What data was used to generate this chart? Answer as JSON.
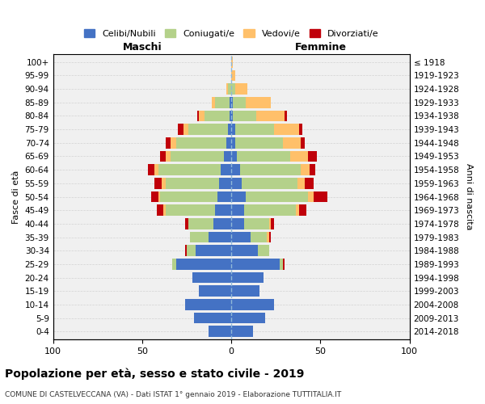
{
  "age_groups": [
    "0-4",
    "5-9",
    "10-14",
    "15-19",
    "20-24",
    "25-29",
    "30-34",
    "35-39",
    "40-44",
    "45-49",
    "50-54",
    "55-59",
    "60-64",
    "65-69",
    "70-74",
    "75-79",
    "80-84",
    "85-89",
    "90-94",
    "95-99",
    "100+"
  ],
  "birth_years": [
    "2014-2018",
    "2009-2013",
    "2004-2008",
    "1999-2003",
    "1994-1998",
    "1989-1993",
    "1984-1988",
    "1979-1983",
    "1974-1978",
    "1969-1973",
    "1964-1968",
    "1959-1963",
    "1954-1958",
    "1949-1953",
    "1944-1948",
    "1939-1943",
    "1934-1938",
    "1929-1933",
    "1924-1928",
    "1919-1923",
    "≤ 1918"
  ],
  "maschi": {
    "celibi": [
      13,
      21,
      26,
      18,
      22,
      31,
      20,
      13,
      10,
      9,
      8,
      7,
      6,
      4,
      3,
      2,
      1,
      1,
      0,
      0,
      0
    ],
    "coniugati": [
      0,
      0,
      0,
      0,
      0,
      2,
      5,
      10,
      14,
      28,
      32,
      30,
      35,
      30,
      28,
      22,
      14,
      8,
      2,
      0,
      0
    ],
    "vedovi": [
      0,
      0,
      0,
      0,
      0,
      0,
      0,
      0,
      0,
      1,
      1,
      2,
      2,
      3,
      3,
      3,
      3,
      2,
      1,
      0,
      0
    ],
    "divorziati": [
      0,
      0,
      0,
      0,
      0,
      0,
      1,
      0,
      2,
      4,
      4,
      4,
      4,
      3,
      3,
      3,
      1,
      0,
      0,
      0,
      0
    ]
  },
  "femmine": {
    "nubili": [
      12,
      19,
      24,
      16,
      18,
      27,
      15,
      11,
      7,
      7,
      8,
      6,
      5,
      3,
      2,
      2,
      1,
      1,
      0,
      0,
      0
    ],
    "coniugate": [
      0,
      0,
      0,
      0,
      0,
      2,
      6,
      9,
      14,
      29,
      35,
      31,
      34,
      30,
      27,
      22,
      13,
      7,
      2,
      0,
      0
    ],
    "vedove": [
      0,
      0,
      0,
      0,
      0,
      0,
      0,
      1,
      1,
      2,
      3,
      4,
      5,
      10,
      10,
      14,
      16,
      14,
      7,
      2,
      1
    ],
    "divorziate": [
      0,
      0,
      0,
      0,
      0,
      1,
      0,
      1,
      2,
      4,
      8,
      5,
      3,
      5,
      2,
      2,
      1,
      0,
      0,
      0,
      0
    ]
  },
  "colors": {
    "celibi": "#4472c4",
    "coniugati": "#b4d18a",
    "vedovi": "#ffc06a",
    "divorziati": "#c0000a"
  },
  "xlim": [
    -100,
    100
  ],
  "xticks": [
    -100,
    -50,
    0,
    50,
    100
  ],
  "xticklabels": [
    "100",
    "50",
    "0",
    "50",
    "100"
  ],
  "title": "Popolazione per età, sesso e stato civile - 2019",
  "subtitle": "COMUNE DI CASTELVECCANA (VA) - Dati ISTAT 1° gennaio 2019 - Elaborazione TUTTITALIA.IT",
  "ylabel": "Fasce di età",
  "ylabel_right": "Anni di nascita",
  "legend_labels": [
    "Celibi/Nubili",
    "Coniugati/e",
    "Vedovi/e",
    "Divorziati/e"
  ],
  "maschi_label": "Maschi",
  "femmine_label": "Femmine",
  "bg_color": "#f0f0f0"
}
